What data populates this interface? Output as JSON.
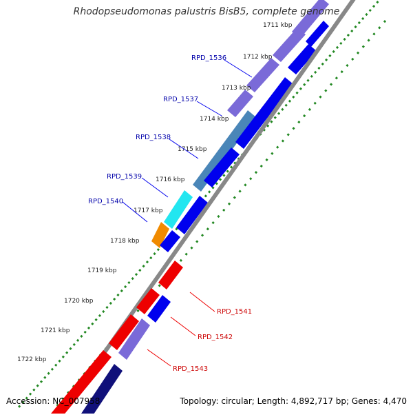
{
  "title": "Rhodopseudomonas palustris BisB5, complete genome",
  "footer": {
    "accession": "Accession: NC_007958",
    "summary": "Topology: circular; Length: 4,892,717 bp; Genes: 4,470"
  },
  "colors": {
    "forward_gene": "#0000ee",
    "reverse_gene": "#ee0000",
    "forward_label": "#0000aa",
    "reverse_label": "#cc0000",
    "backbone": "#888888",
    "gc_skew": "#228822",
    "orf_purple": "#7a6ad8",
    "steel_blue": "#4a86b8",
    "cyan": "#22e6f0",
    "orange": "#f08a00",
    "navy": "#10107a"
  },
  "ticks": [
    "1711 kbp",
    "1712 kbp",
    "1713 kbp",
    "1714 kbp",
    "1715 kbp",
    "1716 kbp",
    "1717 kbp",
    "1718 kbp",
    "1719 kbp",
    "1720 kbp",
    "1721 kbp",
    "1722 kbp"
  ],
  "gene_labels": [
    {
      "text": "RPD_1536",
      "strand": "forward"
    },
    {
      "text": "RPD_1537",
      "strand": "forward"
    },
    {
      "text": "RPD_1538",
      "strand": "forward"
    },
    {
      "text": "RPD_1539",
      "strand": "forward"
    },
    {
      "text": "RPD_1540",
      "strand": "forward"
    },
    {
      "text": "RPD_1541",
      "strand": "reverse"
    },
    {
      "text": "RPD_1542",
      "strand": "reverse"
    },
    {
      "text": "RPD_1543",
      "strand": "reverse"
    }
  ]
}
